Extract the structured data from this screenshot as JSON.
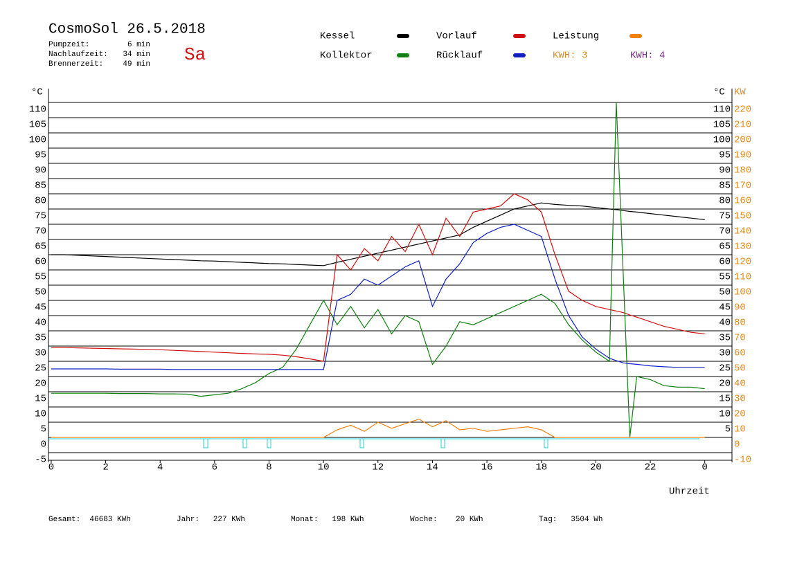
{
  "chart_data": {
    "type": "line",
    "title": "CosmoSol 26.5.2018",
    "weekday": "Sa",
    "info": [
      [
        "Pumpzeit:",
        "6 min"
      ],
      [
        "Nachlaufzeit:",
        "34 min"
      ],
      [
        "Brennerzeit:",
        "49 min"
      ]
    ],
    "y_unit_left": "°C",
    "y_unit_right": "°C",
    "y2_unit": "KW",
    "xlabel": "Uhrzeit",
    "kwh_labels": [
      {
        "text": "KWH: 3",
        "color": "#e08a1e"
      },
      {
        "text": "KWH: 4",
        "color": "#7a2a8a"
      }
    ],
    "footer": [
      "Gesamt:  46683 KWh",
      "Jahr:   227 KWh",
      "Monat:   198 KWh",
      "Woche:    20 KWh",
      "Tag:   3504 Wh"
    ],
    "grid": true,
    "xlim": [
      -0.1,
      25
    ],
    "xticks": [
      0,
      2,
      4,
      6,
      8,
      10,
      12,
      14,
      16,
      18,
      20,
      22,
      {
        "value": 24,
        "label": "0"
      }
    ],
    "ylim": [
      -5,
      115
    ],
    "yticks": [
      -5,
      0,
      5,
      10,
      15,
      20,
      25,
      30,
      35,
      40,
      45,
      50,
      55,
      60,
      65,
      70,
      75,
      80,
      85,
      90,
      95,
      100,
      105,
      110
    ],
    "y2lim": [
      -10,
      230
    ],
    "y2ticks": [
      -10,
      0,
      10,
      20,
      30,
      40,
      50,
      60,
      70,
      80,
      90,
      100,
      110,
      120,
      130,
      140,
      150,
      160,
      170,
      180,
      190,
      200,
      210,
      220
    ],
    "x": [
      0,
      0.5,
      1,
      1.5,
      2,
      2.5,
      3,
      3.5,
      4,
      4.5,
      5,
      5.5,
      6,
      6.5,
      7,
      7.5,
      8,
      8.5,
      9,
      9.5,
      10,
      10.5,
      11,
      11.5,
      12,
      12.5,
      13,
      13.5,
      14,
      14.5,
      15,
      15.5,
      16,
      16.5,
      17,
      17.5,
      18,
      18.5,
      19,
      19.5,
      20,
      20.5,
      20.75,
      21,
      21.25,
      21.5,
      22,
      22.5,
      23,
      23.5,
      24
    ],
    "series": [
      {
        "name": "Kessel",
        "color": "#000000",
        "values": [
          60,
          60,
          59.8,
          59.6,
          59.4,
          59.2,
          59,
          58.8,
          58.6,
          58.4,
          58.2,
          58,
          57.9,
          57.7,
          57.5,
          57.3,
          57.1,
          57,
          56.8,
          56.6,
          56.4,
          57.5,
          58.5,
          59.5,
          60.5,
          61.5,
          62.5,
          63.5,
          64.5,
          65.5,
          66.5,
          69,
          71,
          73,
          75,
          76,
          77,
          76.5,
          76.2,
          76,
          75.5,
          75,
          74.8,
          74.5,
          74.2,
          74,
          73.5,
          73,
          72.5,
          72,
          71.5
        ]
      },
      {
        "name": "Vorlauf",
        "color": "#d01010",
        "values": [
          29.5,
          29.5,
          29.4,
          29.3,
          29.2,
          29.1,
          29,
          28.9,
          28.8,
          28.6,
          28.4,
          28.2,
          28,
          27.8,
          27.6,
          27.4,
          27.3,
          27,
          26.5,
          25.8,
          25,
          60,
          55,
          62,
          58,
          66,
          61,
          70,
          60,
          72,
          66,
          74,
          75,
          76,
          80,
          78,
          74,
          60,
          48,
          45,
          43,
          42,
          41.5,
          41,
          40.2,
          39.5,
          38,
          36.5,
          35.5,
          34.5,
          34
        ]
      },
      {
        "name": "Leistung",
        "color": "#f08010",
        "axis": "y2",
        "values": [
          0,
          0,
          0,
          0,
          0,
          0,
          0,
          0,
          0,
          0,
          0,
          0,
          0,
          0,
          0,
          0,
          0,
          0,
          0,
          0,
          0,
          5,
          8,
          4,
          10,
          6,
          9,
          12,
          7,
          11,
          5,
          6,
          4,
          5,
          6,
          7,
          5,
          0,
          0,
          0,
          0,
          0,
          0,
          0,
          0,
          0,
          0,
          0,
          0,
          0,
          0
        ]
      },
      {
        "name": "Kollektor",
        "color": "#108010",
        "values": [
          14.5,
          14.5,
          14.5,
          14.5,
          14.5,
          14.4,
          14.4,
          14.4,
          14.3,
          14.3,
          14.2,
          13.5,
          14,
          14.5,
          16,
          18,
          21,
          23,
          29,
          37,
          45,
          37,
          43,
          36,
          42,
          34,
          40,
          38,
          24,
          30,
          38,
          37,
          39,
          41,
          43,
          45,
          47,
          44,
          37,
          32,
          28,
          25,
          110,
          55,
          0,
          20,
          19,
          17,
          16.5,
          16.5,
          16
        ]
      },
      {
        "name": "Rücklauf",
        "color": "#1020c0",
        "values": [
          22.5,
          22.5,
          22.5,
          22.5,
          22.5,
          22.4,
          22.4,
          22.4,
          22.4,
          22.3,
          22.3,
          22.3,
          22.3,
          22.3,
          22.3,
          22.3,
          22.3,
          22.3,
          22.3,
          22.3,
          22.3,
          45,
          47,
          52,
          50,
          53,
          56,
          58,
          43,
          52,
          57,
          64,
          67,
          69,
          70,
          68,
          66,
          52,
          40,
          33,
          29,
          26,
          25.2,
          24.5,
          24.2,
          24,
          23.5,
          23.2,
          23,
          23,
          23
        ]
      }
    ]
  }
}
